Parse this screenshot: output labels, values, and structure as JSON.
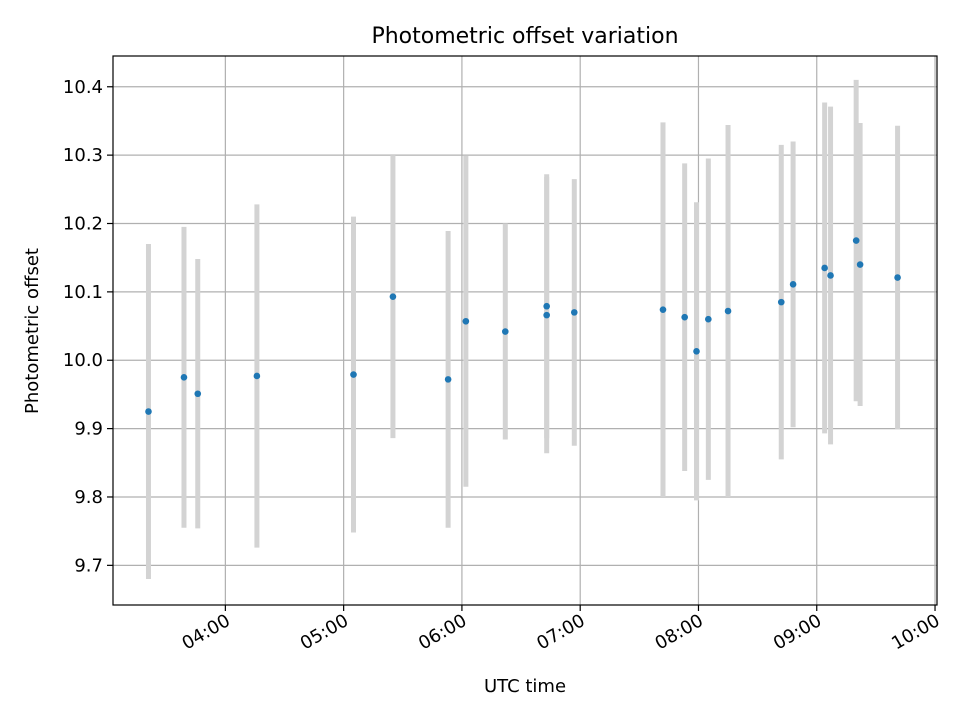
{
  "chart_data": {
    "type": "scatter",
    "title": "Photometric offset variation",
    "xlabel": "UTC time",
    "ylabel": "Photometric offset",
    "x_ticks": [
      "04:00",
      "05:00",
      "06:00",
      "07:00",
      "08:00",
      "09:00",
      "10:00"
    ],
    "y_ticks": [
      9.7,
      9.8,
      9.9,
      10.0,
      10.1,
      10.2,
      10.3,
      10.4
    ],
    "xlim": [
      "03:03",
      "10:01"
    ],
    "ylim": [
      9.642,
      10.445
    ],
    "grid": true,
    "colors": {
      "points": "#1f77b4",
      "errorbars": "#d3d3d3",
      "grid": "#b0b0b0"
    },
    "points": [
      {
        "x": "03:21",
        "y": 9.925,
        "err": 0.245
      },
      {
        "x": "03:39",
        "y": 9.975,
        "err": 0.22
      },
      {
        "x": "03:46",
        "y": 9.951,
        "err": 0.197
      },
      {
        "x": "04:16",
        "y": 9.977,
        "err": 0.251
      },
      {
        "x": "05:05",
        "y": 9.979,
        "err": 0.231
      },
      {
        "x": "05:25",
        "y": 10.093,
        "err": 0.207
      },
      {
        "x": "05:53",
        "y": 9.972,
        "err": 0.217
      },
      {
        "x": "06:02",
        "y": 10.057,
        "err": 0.242
      },
      {
        "x": "06:22",
        "y": 10.042,
        "err": 0.158
      },
      {
        "x": "06:43",
        "y": 10.066,
        "err": 0.202
      },
      {
        "x": "06:43",
        "y": 10.079,
        "err": 0.193
      },
      {
        "x": "06:57",
        "y": 10.07,
        "err": 0.195
      },
      {
        "x": "07:42",
        "y": 10.074,
        "err": 0.274
      },
      {
        "x": "07:53",
        "y": 10.063,
        "err": 0.225
      },
      {
        "x": "07:59",
        "y": 10.013,
        "err": 0.218
      },
      {
        "x": "08:05",
        "y": 10.06,
        "err": 0.235
      },
      {
        "x": "08:15",
        "y": 10.072,
        "err": 0.272
      },
      {
        "x": "08:42",
        "y": 10.085,
        "err": 0.23
      },
      {
        "x": "08:48",
        "y": 10.111,
        "err": 0.209
      },
      {
        "x": "09:04",
        "y": 10.135,
        "err": 0.242
      },
      {
        "x": "09:07",
        "y": 10.124,
        "err": 0.247
      },
      {
        "x": "09:20",
        "y": 10.175,
        "err": 0.235
      },
      {
        "x": "09:22",
        "y": 10.14,
        "err": 0.207
      },
      {
        "x": "09:41",
        "y": 10.121,
        "err": 0.222
      }
    ]
  }
}
